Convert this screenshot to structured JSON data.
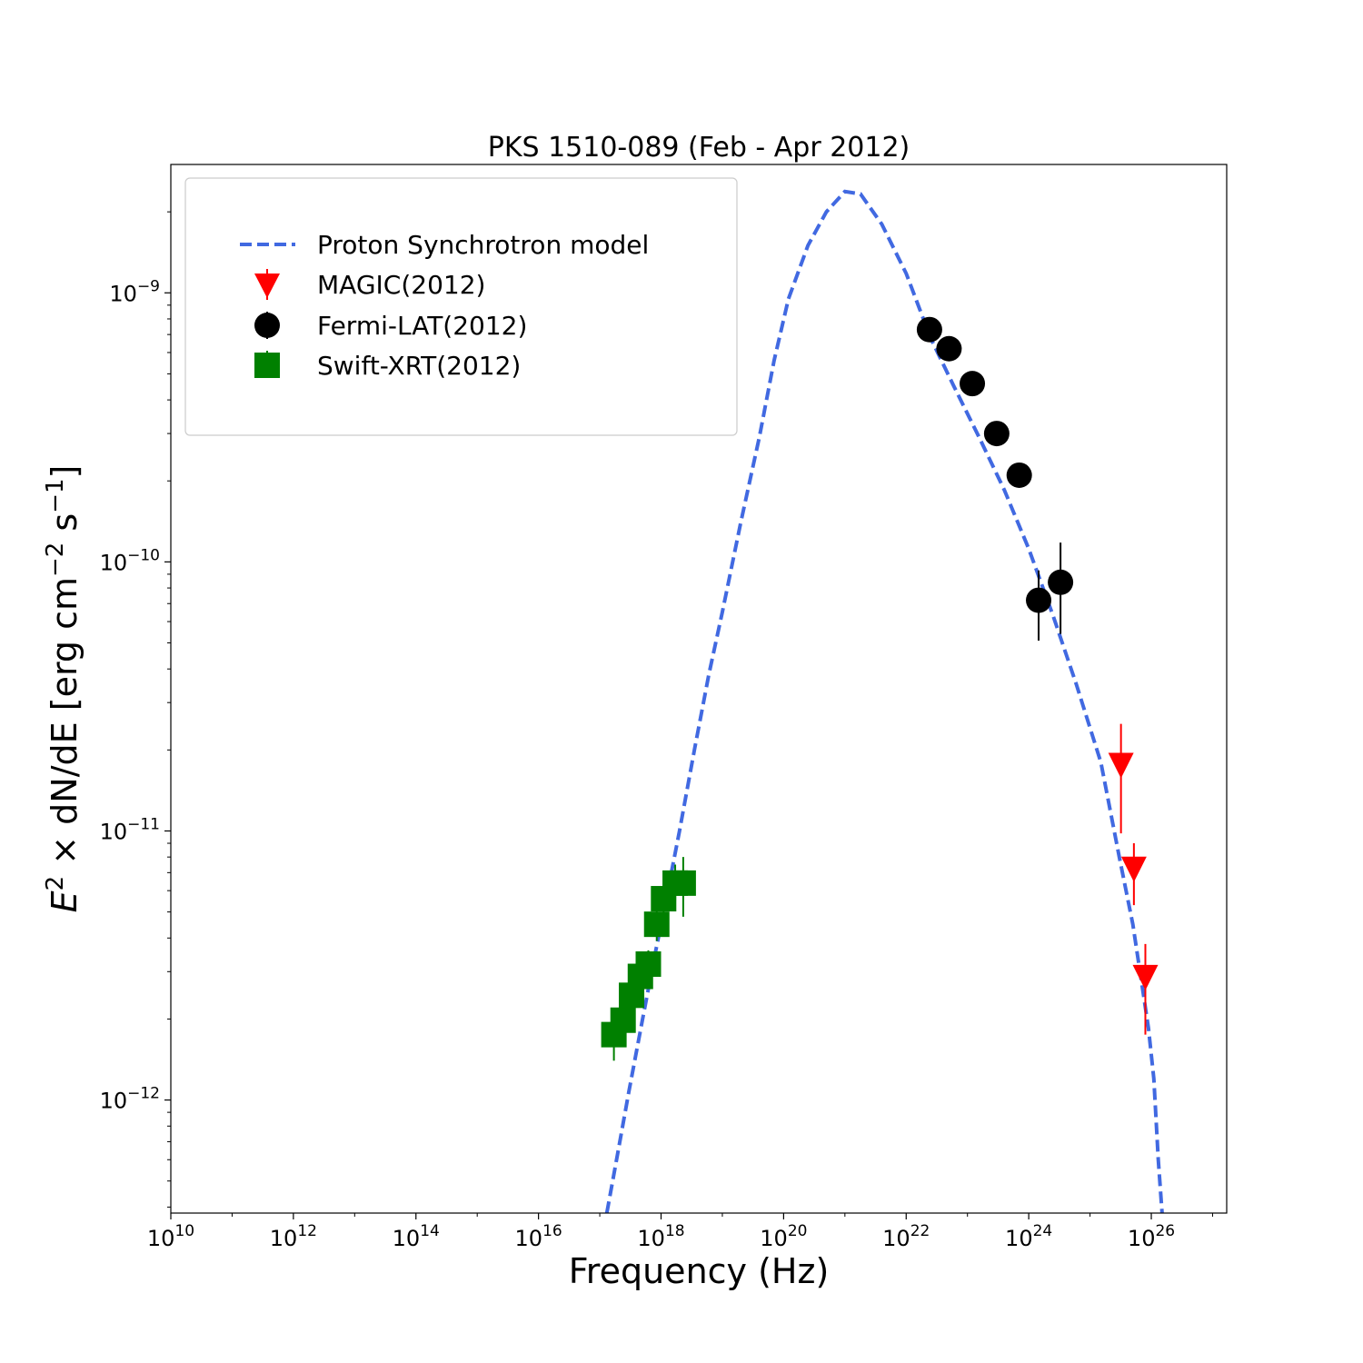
{
  "chart_data": {
    "type": "scatter",
    "title": "PKS 1510-089 (Feb - Apr 2012)",
    "xlabel": "Frequency (Hz)",
    "ylabel": {
      "base": "E",
      "sup": "2",
      "mid": " × dN/dE [erg cm",
      "sup2": "−2",
      "tail": " s",
      "sup3": "−1",
      "end": "]"
    },
    "x_scale": "log",
    "y_scale": "log",
    "xlim": [
      10000000000.0,
      1.7e+27
    ],
    "ylim": [
      3.8e-13,
      3e-09
    ],
    "x_ticks": [
      {
        "value": 10000000000.0,
        "base": "10",
        "exp": "10"
      },
      {
        "value": 1000000000000.0,
        "base": "10",
        "exp": "12"
      },
      {
        "value": 100000000000000.0,
        "base": "10",
        "exp": "14"
      },
      {
        "value": 1e+16,
        "base": "10",
        "exp": "16"
      },
      {
        "value": 1e+18,
        "base": "10",
        "exp": "18"
      },
      {
        "value": 1e+20,
        "base": "10",
        "exp": "20"
      },
      {
        "value": 1e+22,
        "base": "10",
        "exp": "22"
      },
      {
        "value": 1e+24,
        "base": "10",
        "exp": "24"
      },
      {
        "value": 1e+26,
        "base": "10",
        "exp": "26"
      }
    ],
    "y_ticks": [
      {
        "value": 1e-09,
        "base": "10",
        "exp": "−9"
      },
      {
        "value": 1e-10,
        "base": "10",
        "exp": "−10"
      },
      {
        "value": 1e-11,
        "base": "10",
        "exp": "−11"
      },
      {
        "value": 1e-12,
        "base": "10",
        "exp": "−12"
      }
    ],
    "legend_position": "top-left",
    "grid": false,
    "series": [
      {
        "name": "Proton Synchrotron model",
        "kind": "line",
        "style": "dashed",
        "color": "#4169e1",
        "x": [
          1.3e+17,
          2e+17,
          3e+17,
          5e+17,
          8e+17,
          1.2e+18,
          2e+18,
          3.5e+18,
          6e+18,
          1e+19,
          2e+19,
          4e+19,
          7e+19,
          1.2e+20,
          2.5e+20,
          5e+20,
          1e+21,
          1.8e+21,
          4e+21,
          1e+22,
          2.5e+22,
          6e+22,
          1.5e+23,
          4e+23,
          1e+24,
          2.5e+24,
          6e+24,
          1.5e+25,
          3e+25,
          5e+25,
          7e+25,
          9e+25,
          1.1e+26,
          1.3e+26,
          1.5e+26
        ],
        "y": [
          3.8e-13,
          6.5e-13,
          1.08e-12,
          2e-12,
          3.5e-12,
          5.5e-12,
          1e-11,
          2e-11,
          3.8e-11,
          6.5e-11,
          1.4e-10,
          2.9e-10,
          5.6e-10,
          9.5e-10,
          1.5e-09,
          2e-09,
          2.38e-09,
          2.33e-09,
          1.8e-09,
          1.18e-09,
          6.8e-10,
          4.5e-10,
          2.95e-10,
          1.85e-10,
          1.12e-10,
          6.3e-11,
          3.5e-11,
          1.8e-11,
          8e-12,
          4.5e-12,
          2.7e-12,
          1.85e-12,
          1.2e-12,
          6e-13,
          3.8e-13
        ]
      },
      {
        "name": "MAGIC(2012)",
        "kind": "marker",
        "marker": "triangle-down",
        "color": "#ff0000",
        "x": [
          3.2e+25,
          5.2e+25,
          8e+25
        ],
        "y": [
          1.75e-11,
          7.2e-12,
          2.85e-12
        ],
        "y_err_low": [
          9.8e-12,
          5.3e-12,
          1.75e-12
        ],
        "y_err_high": [
          2.5e-11,
          9e-12,
          3.8e-12
        ]
      },
      {
        "name": "Fermi-LAT(2012)",
        "kind": "marker",
        "marker": "circle",
        "color": "#000000",
        "x": [
          2.4e+22,
          5e+22,
          1.2e+23,
          3e+23,
          7e+23,
          1.45e+24,
          3.3e+24
        ],
        "y": [
          7.3e-10,
          6.2e-10,
          4.6e-10,
          3e-10,
          2.1e-10,
          7.2e-11,
          8.4e-11
        ],
        "y_err_low": [
          null,
          null,
          null,
          null,
          null,
          5.1e-11,
          5.4e-11
        ],
        "y_err_high": [
          null,
          null,
          null,
          null,
          null,
          9.3e-11,
          1.18e-10
        ]
      },
      {
        "name": "Swift-XRT(2012)",
        "kind": "marker",
        "marker": "square",
        "color": "#008000",
        "x": [
          1.7e+17,
          2.4e+17,
          3.3e+17,
          4.6e+17,
          6.2e+17,
          8.5e+17,
          1.1e+18,
          1.7e+18,
          2.3e+18
        ],
        "y": [
          1.75e-12,
          1.98e-12,
          2.45e-12,
          2.88e-12,
          3.2e-12,
          4.5e-12,
          5.6e-12,
          6.4e-12,
          6.4e-12
        ],
        "y_err_low": [
          1.4e-12,
          1.6e-12,
          2.05e-12,
          2.55e-12,
          2.8e-12,
          3.9e-12,
          4.8e-12,
          5.5e-12,
          4.8e-12
        ],
        "y_err_high": [
          2.1e-12,
          2.35e-12,
          2.85e-12,
          3.2e-12,
          3.6e-12,
          5.1e-12,
          6.4e-12,
          7.5e-12,
          8e-12
        ]
      }
    ]
  }
}
